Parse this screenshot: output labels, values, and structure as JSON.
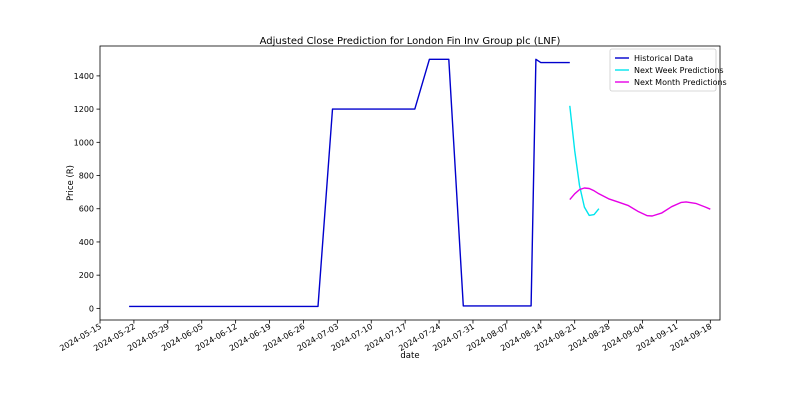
{
  "chart_data": {
    "type": "line",
    "title": "Adjusted Close Prediction for London Fin Inv Group plc (LNF)",
    "xlabel": "date",
    "ylabel": "Price (R)",
    "xlim": [
      "2024-05-15",
      "2024-09-20"
    ],
    "ylim": [
      -70,
      1580
    ],
    "x_ticks": [
      "2024-05-15",
      "2024-05-22",
      "2024-05-29",
      "2024-06-05",
      "2024-06-12",
      "2024-06-19",
      "2024-06-26",
      "2024-07-03",
      "2024-07-10",
      "2024-07-17",
      "2024-07-24",
      "2024-07-31",
      "2024-08-07",
      "2024-08-14",
      "2024-08-21",
      "2024-08-28",
      "2024-09-04",
      "2024-09-11",
      "2024-09-18"
    ],
    "y_ticks": [
      0,
      200,
      400,
      600,
      800,
      1000,
      1200,
      1400
    ],
    "grid": false,
    "legend": "upper-right",
    "series": [
      {
        "name": "Historical Data",
        "color": "#0000cd",
        "points": [
          {
            "x": "2024-05-21",
            "y": 12
          },
          {
            "x": "2024-06-29",
            "y": 12
          },
          {
            "x": "2024-07-02",
            "y": 1200
          },
          {
            "x": "2024-07-19",
            "y": 1200
          },
          {
            "x": "2024-07-22",
            "y": 1500
          },
          {
            "x": "2024-07-26",
            "y": 1500
          },
          {
            "x": "2024-07-29",
            "y": 15
          },
          {
            "x": "2024-08-12",
            "y": 15
          },
          {
            "x": "2024-08-13",
            "y": 1500
          },
          {
            "x": "2024-08-14",
            "y": 1480
          },
          {
            "x": "2024-08-20",
            "y": 1480
          }
        ]
      },
      {
        "name": "Next Week Predictions",
        "color": "#00e5ee",
        "points": [
          {
            "x": "2024-08-20",
            "y": 1220
          },
          {
            "x": "2024-08-21",
            "y": 950
          },
          {
            "x": "2024-08-22",
            "y": 740
          },
          {
            "x": "2024-08-23",
            "y": 610
          },
          {
            "x": "2024-08-24",
            "y": 560
          },
          {
            "x": "2024-08-25",
            "y": 565
          },
          {
            "x": "2024-08-26",
            "y": 600
          }
        ]
      },
      {
        "name": "Next Month Predictions",
        "color": "#e600e6",
        "points": [
          {
            "x": "2024-08-20",
            "y": 655
          },
          {
            "x": "2024-08-21",
            "y": 690
          },
          {
            "x": "2024-08-22",
            "y": 715
          },
          {
            "x": "2024-08-23",
            "y": 725
          },
          {
            "x": "2024-08-24",
            "y": 722
          },
          {
            "x": "2024-08-25",
            "y": 708
          },
          {
            "x": "2024-08-26",
            "y": 690
          },
          {
            "x": "2024-08-28",
            "y": 660
          },
          {
            "x": "2024-08-30",
            "y": 640
          },
          {
            "x": "2024-09-01",
            "y": 620
          },
          {
            "x": "2024-09-03",
            "y": 585
          },
          {
            "x": "2024-09-05",
            "y": 558
          },
          {
            "x": "2024-09-06",
            "y": 556
          },
          {
            "x": "2024-09-08",
            "y": 575
          },
          {
            "x": "2024-09-10",
            "y": 612
          },
          {
            "x": "2024-09-12",
            "y": 638
          },
          {
            "x": "2024-09-13",
            "y": 641
          },
          {
            "x": "2024-09-15",
            "y": 632
          },
          {
            "x": "2024-09-17",
            "y": 610
          },
          {
            "x": "2024-09-18",
            "y": 597
          }
        ]
      }
    ]
  }
}
